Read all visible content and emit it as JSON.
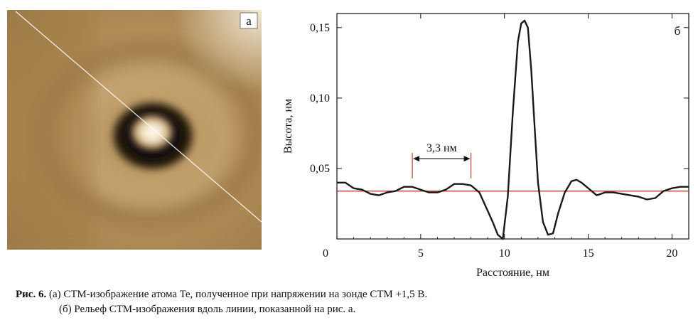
{
  "panel_a": {
    "label": "а",
    "colors": {
      "ring_dark": "#141008",
      "center_bright": "#fffaf0",
      "background": "#b8955f",
      "scan_line": "#ffffff"
    }
  },
  "chart_data": {
    "type": "line",
    "panel_label": "б",
    "xlabel": "Расстояние, нм",
    "ylabel": "Высота, нм",
    "xlim": [
      0,
      21
    ],
    "ylim": [
      0,
      0.16
    ],
    "xticks": [
      0,
      5,
      10,
      15,
      20
    ],
    "xtick_labels": [
      "0",
      "5",
      "10",
      "15",
      "20"
    ],
    "yticks": [
      0.05,
      0.1,
      0.15
    ],
    "ytick_labels": [
      "0,05",
      "0,10",
      "0,15"
    ],
    "reference_line_y": 0.034,
    "reference_line_color": "#c0392b",
    "line_color": "#1a1a1a",
    "annotation": {
      "text": "3,3 нм",
      "x_start": 4.5,
      "x_end": 8.0,
      "y": 0.057
    },
    "series": [
      {
        "x": [
          0,
          0.5,
          1,
          1.5,
          2,
          2.5,
          3,
          3.5,
          4,
          4.5,
          5,
          5.5,
          6,
          6.5,
          7,
          7.5,
          8,
          8.5,
          9,
          9.3,
          9.6,
          9.9,
          10.2,
          10.5,
          10.8,
          11,
          11.2,
          11.4,
          11.6,
          11.8,
          12,
          12.3,
          12.6,
          12.9,
          13.2,
          13.6,
          14,
          14.3,
          14.6,
          15,
          15.5,
          16,
          16.5,
          17,
          17.5,
          18,
          18.5,
          19,
          19.5,
          20,
          20.5,
          21
        ],
        "y": [
          0.04,
          0.04,
          0.036,
          0.035,
          0.032,
          0.031,
          0.033,
          0.034,
          0.037,
          0.037,
          0.035,
          0.033,
          0.033,
          0.035,
          0.039,
          0.039,
          0.038,
          0.033,
          0.02,
          0.012,
          0.003,
          0.0,
          0.03,
          0.09,
          0.14,
          0.153,
          0.155,
          0.15,
          0.12,
          0.08,
          0.04,
          0.012,
          0.003,
          0.004,
          0.018,
          0.033,
          0.041,
          0.042,
          0.04,
          0.036,
          0.031,
          0.033,
          0.033,
          0.032,
          0.031,
          0.03,
          0.028,
          0.029,
          0.034,
          0.036,
          0.037,
          0.037
        ]
      }
    ]
  },
  "caption": {
    "prefix": "Рис. 6.",
    "line1": " (а) СТМ-изображение атома Te, полученное при напряжении на зонде СТМ +1,5 В.",
    "line2": "(б) Рельеф СТМ-изображения вдоль линии, показанной на рис. а."
  }
}
